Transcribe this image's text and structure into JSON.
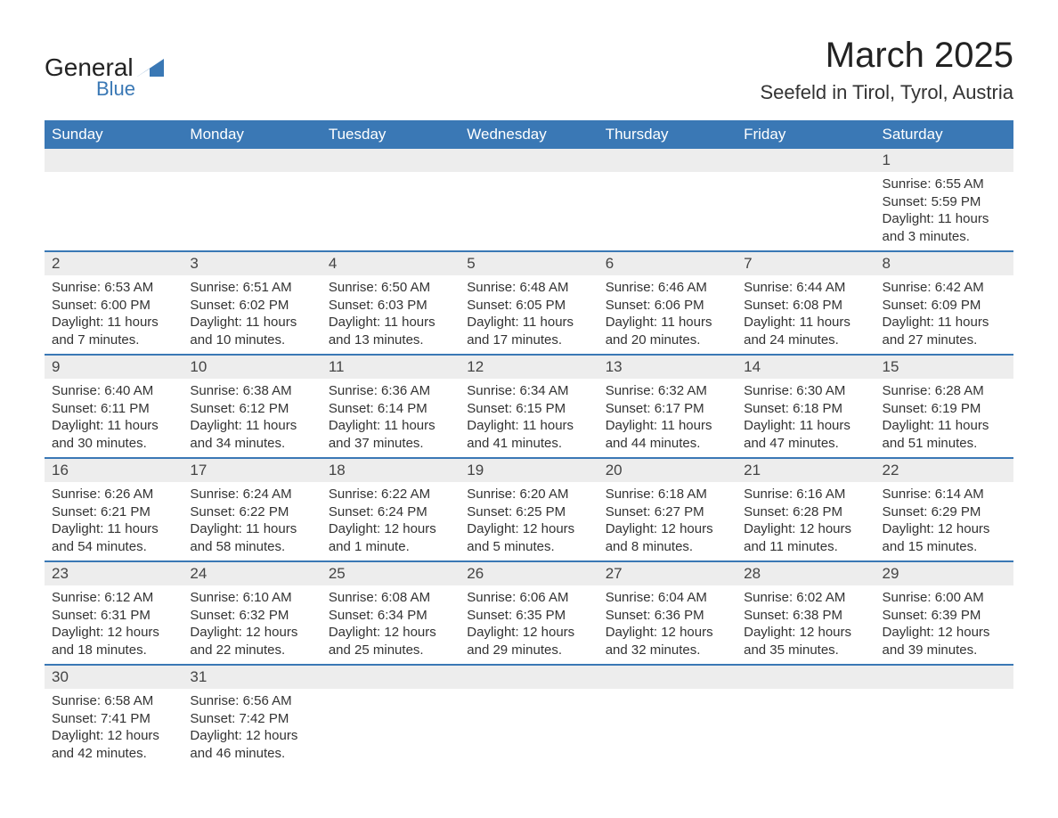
{
  "logo": {
    "text1": "General",
    "text2": "Blue",
    "shape_color": "#3a78b5"
  },
  "header": {
    "title": "March 2025",
    "subtitle": "Seefeld in Tirol, Tyrol, Austria",
    "title_fontsize": 40,
    "subtitle_fontsize": 22
  },
  "styling": {
    "header_bg": "#3a78b5",
    "header_text": "#ffffff",
    "daynum_bg": "#ededed",
    "row_divider": "#3a78b5",
    "body_text": "#333333",
    "cell_fontsize": 15,
    "daynum_fontsize": 17
  },
  "columns": [
    "Sunday",
    "Monday",
    "Tuesday",
    "Wednesday",
    "Thursday",
    "Friday",
    "Saturday"
  ],
  "weeks": [
    [
      null,
      null,
      null,
      null,
      null,
      null,
      {
        "n": "1",
        "sunrise": "Sunrise: 6:55 AM",
        "sunset": "Sunset: 5:59 PM",
        "daylight": "Daylight: 11 hours and 3 minutes."
      }
    ],
    [
      {
        "n": "2",
        "sunrise": "Sunrise: 6:53 AM",
        "sunset": "Sunset: 6:00 PM",
        "daylight": "Daylight: 11 hours and 7 minutes."
      },
      {
        "n": "3",
        "sunrise": "Sunrise: 6:51 AM",
        "sunset": "Sunset: 6:02 PM",
        "daylight": "Daylight: 11 hours and 10 minutes."
      },
      {
        "n": "4",
        "sunrise": "Sunrise: 6:50 AM",
        "sunset": "Sunset: 6:03 PM",
        "daylight": "Daylight: 11 hours and 13 minutes."
      },
      {
        "n": "5",
        "sunrise": "Sunrise: 6:48 AM",
        "sunset": "Sunset: 6:05 PM",
        "daylight": "Daylight: 11 hours and 17 minutes."
      },
      {
        "n": "6",
        "sunrise": "Sunrise: 6:46 AM",
        "sunset": "Sunset: 6:06 PM",
        "daylight": "Daylight: 11 hours and 20 minutes."
      },
      {
        "n": "7",
        "sunrise": "Sunrise: 6:44 AM",
        "sunset": "Sunset: 6:08 PM",
        "daylight": "Daylight: 11 hours and 24 minutes."
      },
      {
        "n": "8",
        "sunrise": "Sunrise: 6:42 AM",
        "sunset": "Sunset: 6:09 PM",
        "daylight": "Daylight: 11 hours and 27 minutes."
      }
    ],
    [
      {
        "n": "9",
        "sunrise": "Sunrise: 6:40 AM",
        "sunset": "Sunset: 6:11 PM",
        "daylight": "Daylight: 11 hours and 30 minutes."
      },
      {
        "n": "10",
        "sunrise": "Sunrise: 6:38 AM",
        "sunset": "Sunset: 6:12 PM",
        "daylight": "Daylight: 11 hours and 34 minutes."
      },
      {
        "n": "11",
        "sunrise": "Sunrise: 6:36 AM",
        "sunset": "Sunset: 6:14 PM",
        "daylight": "Daylight: 11 hours and 37 minutes."
      },
      {
        "n": "12",
        "sunrise": "Sunrise: 6:34 AM",
        "sunset": "Sunset: 6:15 PM",
        "daylight": "Daylight: 11 hours and 41 minutes."
      },
      {
        "n": "13",
        "sunrise": "Sunrise: 6:32 AM",
        "sunset": "Sunset: 6:17 PM",
        "daylight": "Daylight: 11 hours and 44 minutes."
      },
      {
        "n": "14",
        "sunrise": "Sunrise: 6:30 AM",
        "sunset": "Sunset: 6:18 PM",
        "daylight": "Daylight: 11 hours and 47 minutes."
      },
      {
        "n": "15",
        "sunrise": "Sunrise: 6:28 AM",
        "sunset": "Sunset: 6:19 PM",
        "daylight": "Daylight: 11 hours and 51 minutes."
      }
    ],
    [
      {
        "n": "16",
        "sunrise": "Sunrise: 6:26 AM",
        "sunset": "Sunset: 6:21 PM",
        "daylight": "Daylight: 11 hours and 54 minutes."
      },
      {
        "n": "17",
        "sunrise": "Sunrise: 6:24 AM",
        "sunset": "Sunset: 6:22 PM",
        "daylight": "Daylight: 11 hours and 58 minutes."
      },
      {
        "n": "18",
        "sunrise": "Sunrise: 6:22 AM",
        "sunset": "Sunset: 6:24 PM",
        "daylight": "Daylight: 12 hours and 1 minute."
      },
      {
        "n": "19",
        "sunrise": "Sunrise: 6:20 AM",
        "sunset": "Sunset: 6:25 PM",
        "daylight": "Daylight: 12 hours and 5 minutes."
      },
      {
        "n": "20",
        "sunrise": "Sunrise: 6:18 AM",
        "sunset": "Sunset: 6:27 PM",
        "daylight": "Daylight: 12 hours and 8 minutes."
      },
      {
        "n": "21",
        "sunrise": "Sunrise: 6:16 AM",
        "sunset": "Sunset: 6:28 PM",
        "daylight": "Daylight: 12 hours and 11 minutes."
      },
      {
        "n": "22",
        "sunrise": "Sunrise: 6:14 AM",
        "sunset": "Sunset: 6:29 PM",
        "daylight": "Daylight: 12 hours and 15 minutes."
      }
    ],
    [
      {
        "n": "23",
        "sunrise": "Sunrise: 6:12 AM",
        "sunset": "Sunset: 6:31 PM",
        "daylight": "Daylight: 12 hours and 18 minutes."
      },
      {
        "n": "24",
        "sunrise": "Sunrise: 6:10 AM",
        "sunset": "Sunset: 6:32 PM",
        "daylight": "Daylight: 12 hours and 22 minutes."
      },
      {
        "n": "25",
        "sunrise": "Sunrise: 6:08 AM",
        "sunset": "Sunset: 6:34 PM",
        "daylight": "Daylight: 12 hours and 25 minutes."
      },
      {
        "n": "26",
        "sunrise": "Sunrise: 6:06 AM",
        "sunset": "Sunset: 6:35 PM",
        "daylight": "Daylight: 12 hours and 29 minutes."
      },
      {
        "n": "27",
        "sunrise": "Sunrise: 6:04 AM",
        "sunset": "Sunset: 6:36 PM",
        "daylight": "Daylight: 12 hours and 32 minutes."
      },
      {
        "n": "28",
        "sunrise": "Sunrise: 6:02 AM",
        "sunset": "Sunset: 6:38 PM",
        "daylight": "Daylight: 12 hours and 35 minutes."
      },
      {
        "n": "29",
        "sunrise": "Sunrise: 6:00 AM",
        "sunset": "Sunset: 6:39 PM",
        "daylight": "Daylight: 12 hours and 39 minutes."
      }
    ],
    [
      {
        "n": "30",
        "sunrise": "Sunrise: 6:58 AM",
        "sunset": "Sunset: 7:41 PM",
        "daylight": "Daylight: 12 hours and 42 minutes."
      },
      {
        "n": "31",
        "sunrise": "Sunrise: 6:56 AM",
        "sunset": "Sunset: 7:42 PM",
        "daylight": "Daylight: 12 hours and 46 minutes."
      },
      null,
      null,
      null,
      null,
      null
    ]
  ]
}
